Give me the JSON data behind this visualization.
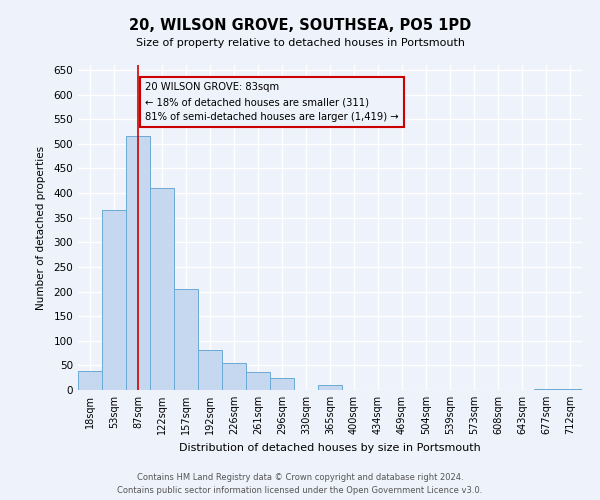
{
  "title": "20, WILSON GROVE, SOUTHSEA, PO5 1PD",
  "subtitle": "Size of property relative to detached houses in Portsmouth",
  "xlabel": "Distribution of detached houses by size in Portsmouth",
  "ylabel": "Number of detached properties",
  "bar_color": "#c5d8f0",
  "bar_edge_color": "#6aaad4",
  "background_color": "#eef2fa",
  "grid_color": "#ffffff",
  "annotation_box_color": "#cc0000",
  "vline_color": "#cc0000",
  "vline_x": 2,
  "annotation_text_line1": "20 WILSON GROVE: 83sqm",
  "annotation_text_line2": "← 18% of detached houses are smaller (311)",
  "annotation_text_line3": "81% of semi-detached houses are larger (1,419) →",
  "bin_labels": [
    "18sqm",
    "53sqm",
    "87sqm",
    "122sqm",
    "157sqm",
    "192sqm",
    "226sqm",
    "261sqm",
    "296sqm",
    "330sqm",
    "365sqm",
    "400sqm",
    "434sqm",
    "469sqm",
    "504sqm",
    "539sqm",
    "573sqm",
    "608sqm",
    "643sqm",
    "677sqm",
    "712sqm"
  ],
  "bar_heights": [
    38,
    365,
    515,
    410,
    205,
    82,
    55,
    37,
    24,
    0,
    10,
    0,
    0,
    0,
    0,
    0,
    0,
    0,
    0,
    3,
    2
  ],
  "ylim": [
    0,
    660
  ],
  "yticks": [
    0,
    50,
    100,
    150,
    200,
    250,
    300,
    350,
    400,
    450,
    500,
    550,
    600,
    650
  ],
  "footer_line1": "Contains HM Land Registry data © Crown copyright and database right 2024.",
  "footer_line2": "Contains public sector information licensed under the Open Government Licence v3.0."
}
